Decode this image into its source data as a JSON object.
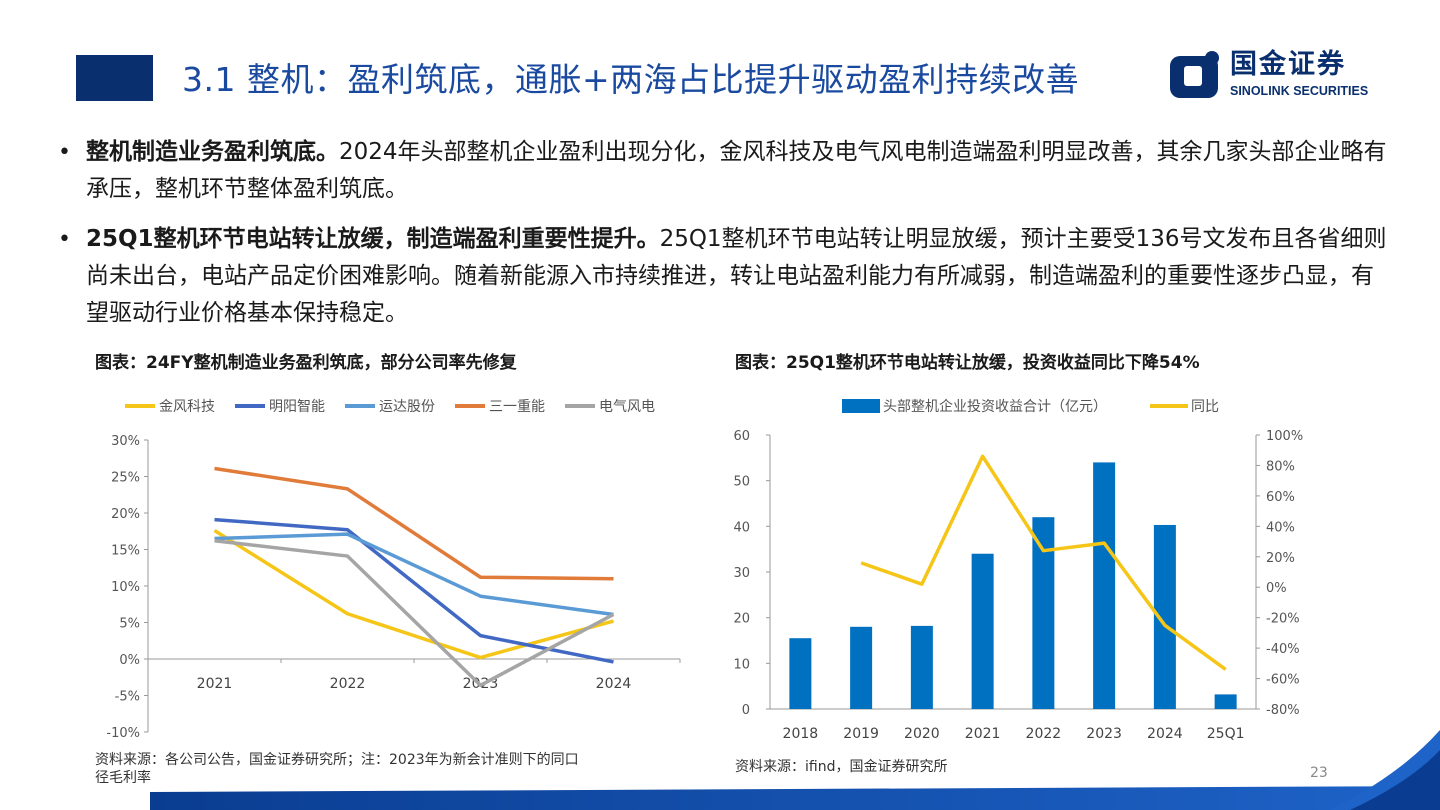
{
  "header": {
    "title": "3.1 整机：盈利筑底，通胀+两海占比提升驱动盈利持续改善",
    "logo_cn": "国金证券",
    "logo_en": "SINOLINK SECURITIES"
  },
  "bullets": [
    {
      "bold": "整机制造业务盈利筑底。",
      "text": "2024年头部整机企业盈利出现分化，金风科技及电气风电制造端盈利明显改善，其余几家头部企业略有承压，整机环节整体盈利筑底。"
    },
    {
      "bold": "25Q1整机环节电站转让放缓，制造端盈利重要性提升。",
      "text": "25Q1整机环节电站转让明显放缓，预计主要受136号文发布且各省细则尚未出台，电站产品定价困难影响。随着新能源入市持续推进，转让电站盈利能力有所减弱，制造端盈利的重要性逐步凸显，有望驱动行业价格基本保持稳定。"
    }
  ],
  "left_chart": {
    "caption": "图表：24FY整机制造业务盈利筑底，部分公司率先修复",
    "source": "资料来源：各公司公告，国金证券研究所；注：2023年为新会计准则下的同口径毛利率"
  },
  "right_chart": {
    "caption": "图表：25Q1整机环节电站转让放缓，投资收益同比下降54%",
    "source": "资料来源：ifind，国金证券研究所"
  },
  "page_number": "23",
  "chart_data": [
    {
      "type": "line",
      "x": [
        "2021",
        "2022",
        "2023",
        "2024"
      ],
      "series": [
        {
          "name": "金风科技",
          "color": "#f5c518",
          "values": [
            17.6,
            6.2,
            0.2,
            5.2
          ]
        },
        {
          "name": "明阳智能",
          "color": "#4169c4",
          "values": [
            19.1,
            17.7,
            3.2,
            -0.4
          ]
        },
        {
          "name": "运达股份",
          "color": "#5b9bd5",
          "values": [
            16.5,
            17.1,
            8.6,
            6.1
          ]
        },
        {
          "name": "三一重能",
          "color": "#e07b39",
          "values": [
            26.1,
            23.3,
            11.2,
            11.0
          ]
        },
        {
          "name": "电气风电",
          "color": "#a5a5a5",
          "values": [
            16.2,
            14.1,
            -3.6,
            6.1
          ]
        }
      ],
      "yticks": [
        "30%",
        "25%",
        "20%",
        "15%",
        "10%",
        "5%",
        "0%",
        "-5%",
        "-10%"
      ],
      "ylim": [
        -10,
        30
      ],
      "legend": "top"
    },
    {
      "type": "bar+line",
      "categories": [
        "2018",
        "2019",
        "2020",
        "2021",
        "2022",
        "2023",
        "2024",
        "25Q1"
      ],
      "bar_series": {
        "name": "头部整机企业投资收益合计（亿元）",
        "color": "#0070c0",
        "values": [
          15.5,
          18,
          18.2,
          34,
          42,
          54,
          40.3,
          3.2
        ]
      },
      "line_series": {
        "name": "同比",
        "color": "#f5c518",
        "values": [
          null,
          16,
          2,
          86,
          24,
          29,
          -25,
          -54
        ]
      },
      "y_left_ticks": [
        "60",
        "50",
        "40",
        "30",
        "20",
        "10",
        "0"
      ],
      "y_left_lim": [
        0,
        60
      ],
      "y_right_ticks": [
        "100%",
        "80%",
        "60%",
        "40%",
        "20%",
        "0%",
        "-20%",
        "-40%",
        "-60%",
        "-80%"
      ],
      "y_right_lim": [
        -80,
        100
      ],
      "legend": "top"
    }
  ]
}
